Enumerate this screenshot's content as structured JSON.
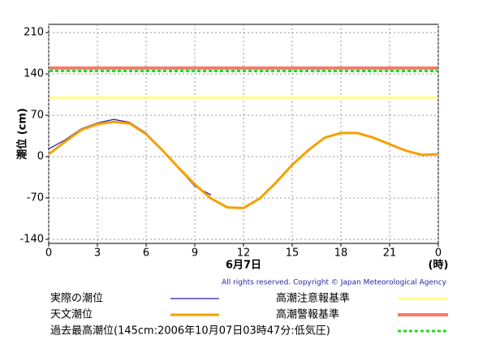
{
  "chart_data": {
    "type": "line",
    "y_label": "潮位 (cm)",
    "date_label": "6月7日",
    "x_unit": "(時)",
    "copyright": "All rights reserved. Copyright © Japan Meteorological Agency",
    "x": [
      0,
      1,
      2,
      3,
      4,
      5,
      6,
      7,
      8,
      9,
      10,
      11,
      12,
      13,
      14,
      15,
      16,
      17,
      18,
      19,
      20,
      21,
      22,
      23,
      24
    ],
    "xlim": [
      0,
      24
    ],
    "xticks": [
      0,
      3,
      6,
      9,
      12,
      15,
      18,
      21,
      {
        "value": 24,
        "label": "0"
      }
    ],
    "ylim": [
      -147,
      224
    ],
    "yticks": [
      210,
      140,
      70,
      0,
      -70,
      -140
    ],
    "grid": true,
    "series": [
      {
        "name": "実際の潮位",
        "color": "#2a1aa8",
        "width": 1.2,
        "values": [
          13,
          28,
          47,
          57,
          63,
          58,
          40,
          12,
          -20,
          -50,
          -65,
          null,
          null,
          null,
          null,
          null,
          null,
          null,
          null,
          null,
          null,
          null,
          null,
          null,
          null
        ]
      },
      {
        "name": "天文潮位",
        "color": "#f5a000",
        "width": 3,
        "values": [
          4,
          25,
          45,
          55,
          59,
          56,
          38,
          11,
          -19,
          -47,
          -71,
          -86,
          -87,
          -71,
          -44,
          -14,
          11,
          32,
          40,
          40,
          32,
          21,
          10,
          3,
          4
        ]
      }
    ],
    "reference_lines": [
      {
        "name": "高潮注意報基準",
        "value": 100,
        "color": "#ffff88",
        "width": 3
      },
      {
        "name": "高潮警報基準",
        "value": 150,
        "color": "#f47a6a",
        "width": 4
      },
      {
        "name": "過去最高潮位(145cm:2006年10月07日03時47分:低気圧)",
        "value": 145,
        "color": "#22dd22",
        "width": 3,
        "dashed": true
      }
    ]
  }
}
